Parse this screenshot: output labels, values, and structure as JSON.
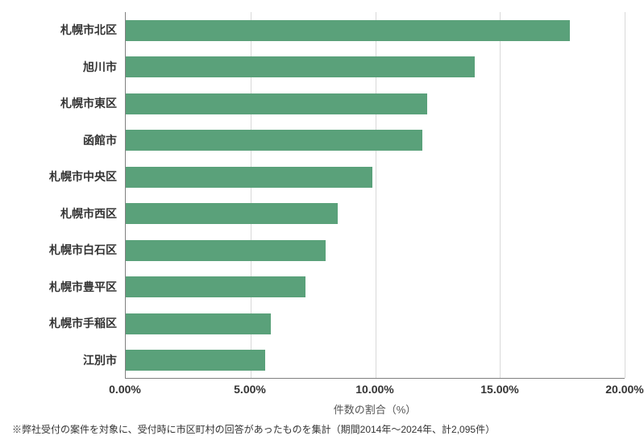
{
  "chart": {
    "type": "bar-horizontal",
    "categories": [
      "札幌市北区",
      "旭川市",
      "札幌市東区",
      "函館市",
      "札幌市中央区",
      "札幌市西区",
      "札幌市白石区",
      "札幌市豊平区",
      "札幌市手稲区",
      "江別市"
    ],
    "values": [
      17.8,
      14.0,
      12.1,
      11.9,
      9.9,
      8.5,
      8.0,
      7.2,
      5.8,
      5.6
    ],
    "bar_color": "#5aa17a",
    "xlim": [
      0,
      20
    ],
    "xtick_step": 5,
    "xtick_labels": [
      "0.00%",
      "5.00%",
      "10.00%",
      "15.00%",
      "20.00%"
    ],
    "x_axis_title": "件数の割合（%）",
    "grid_color": "#d9d9d9",
    "axis_color": "#808080",
    "background_color": "#ffffff",
    "label_fontsize": 14,
    "label_fontweight": "bold"
  },
  "footnote": "※弊社受付の案件を対象に、受付時に市区町村の回答があったものを集計（期間2014年～2024年、計2,095件）"
}
